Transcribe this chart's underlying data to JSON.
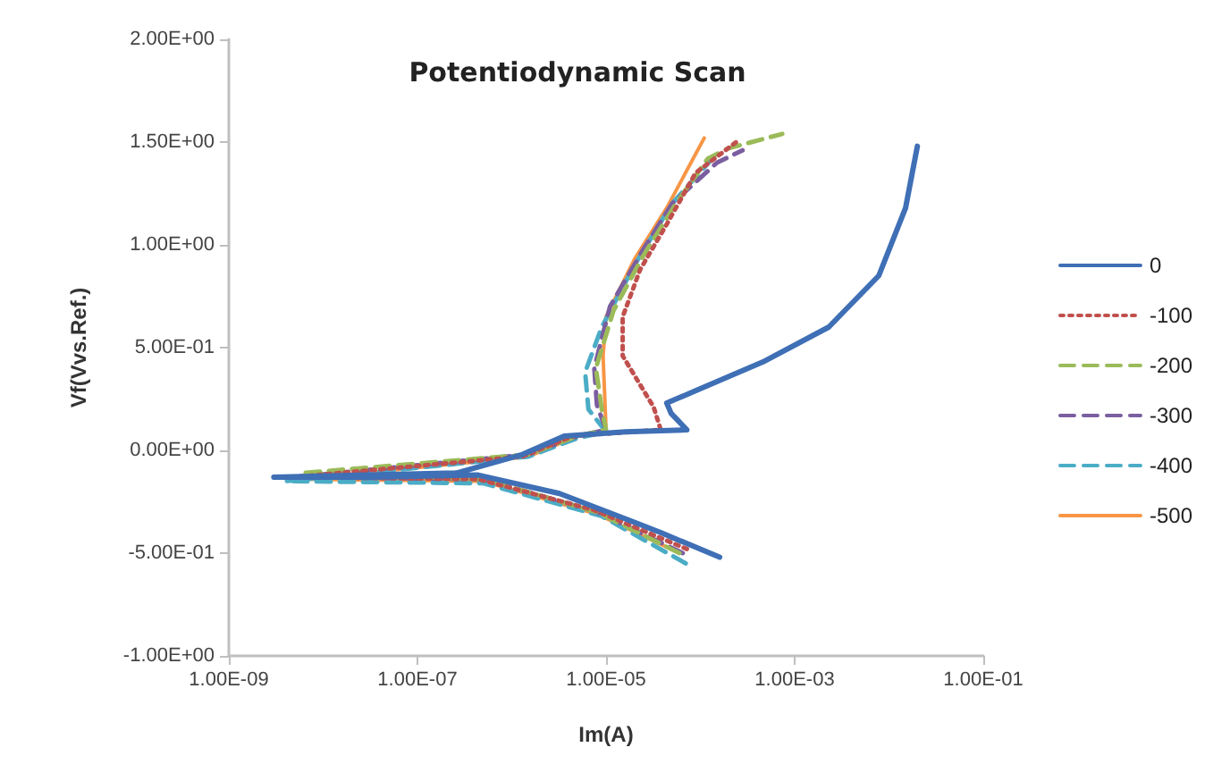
{
  "chart_data": {
    "type": "line",
    "title": "Potentiodynamic Scan",
    "xlabel": "Im(A)",
    "ylabel": "Vf(Vvs.Ref.)",
    "log": "x",
    "grid": false,
    "legend": "right",
    "marker": "none",
    "xlim": [
      1e-09,
      0.1
    ],
    "xticks": [
      {
        "value": 1e-09,
        "label": "1.00E-09"
      },
      {
        "value": 1e-07,
        "label": "1.00E-07"
      },
      {
        "value": 1e-05,
        "label": "1.00E-05"
      },
      {
        "value": 0.001,
        "label": "1.00E-03"
      },
      {
        "value": 0.1,
        "label": "1.00E-01"
      }
    ],
    "ylim": [
      -1,
      2
    ],
    "yticks": [
      {
        "value": -1,
        "label": "-1.00E+00"
      },
      {
        "value": -0.5,
        "label": "-5.00E-01"
      },
      {
        "value": 0,
        "label": "0.00E+00"
      },
      {
        "value": 0.5,
        "label": "5.00E-01"
      },
      {
        "value": 1,
        "label": "1.00E+00"
      },
      {
        "value": 1.5,
        "label": "1.50E+00"
      },
      {
        "value": 2,
        "label": "2.00E+00"
      }
    ],
    "series": [
      {
        "name": "0",
        "color": "#3f6fb5",
        "line_style": "solid",
        "x": [
          0.00016,
          3.8e-05,
          2e-05,
          3.2e-06,
          4.4e-07,
          3.2e-08,
          3e-09,
          2.6e-07,
          1.3e-06,
          3.6e-06,
          1.6e-05,
          7.2e-05,
          4.9e-05,
          4.4e-05,
          8.9e-05,
          0.00046,
          0.0023,
          0.0078,
          0.015,
          0.02
        ],
        "values": [
          -0.52,
          -0.4,
          -0.35,
          -0.21,
          -0.12,
          -0.13,
          -0.13,
          -0.11,
          -0.02,
          0.07,
          0.09,
          0.1,
          0.18,
          0.23,
          0.29,
          0.43,
          0.6,
          0.85,
          1.18,
          1.48
        ]
      },
      {
        "name": "-100",
        "color": "#c0504d",
        "line_style": "dotted",
        "x": [
          7.2e-05,
          7.4e-06,
          4.4e-07,
          4.9e-09,
          1.3e-06,
          4.5e-06,
          3.8e-05,
          3.2e-05,
          1.5e-05,
          1.5e-05,
          2.3e-05,
          4.4e-05,
          8.9e-05,
          0.00024
        ],
        "values": [
          -0.48,
          -0.29,
          -0.14,
          -0.13,
          -0.03,
          0.07,
          0.1,
          0.21,
          0.46,
          0.65,
          0.88,
          1.1,
          1.35,
          1.5
        ]
      },
      {
        "name": "-200",
        "color": "#9bbb59",
        "line_style": "dashed",
        "x": [
          6e-05,
          8e-06,
          5e-07,
          6e-09,
          1.5e-06,
          5e-06,
          1e-05,
          9e-06,
          7.8e-06,
          1.2e-05,
          2.5e-05,
          5.5e-05,
          0.00012,
          0.0002,
          0.00074
        ],
        "values": [
          -0.5,
          -0.3,
          -0.14,
          -0.11,
          -0.02,
          0.07,
          0.1,
          0.2,
          0.4,
          0.68,
          0.95,
          1.2,
          1.42,
          1.47,
          1.54
        ]
      },
      {
        "name": "-300",
        "color": "#7a5ea0",
        "line_style": "dashed",
        "x": [
          6.5e-05,
          8e-06,
          5e-07,
          5e-09,
          1.5e-06,
          5e-06,
          1e-05,
          8e-06,
          7.5e-06,
          1.1e-05,
          2.5e-05,
          5e-05,
          0.00015,
          0.00028
        ],
        "values": [
          -0.5,
          -0.3,
          -0.14,
          -0.13,
          -0.02,
          0.07,
          0.1,
          0.22,
          0.4,
          0.7,
          0.98,
          1.2,
          1.4,
          1.46
        ]
      },
      {
        "name": "-400",
        "color": "#4bacc6",
        "line_style": "dashed",
        "x": [
          7e-05,
          9e-06,
          5e-07,
          4e-09,
          1.5e-06,
          5e-06,
          1e-05,
          6.5e-06,
          6e-06,
          9e-06,
          2e-05,
          5e-05,
          0.00014
        ],
        "values": [
          -0.55,
          -0.32,
          -0.16,
          -0.15,
          -0.03,
          0.06,
          0.09,
          0.2,
          0.38,
          0.6,
          0.9,
          1.2,
          1.43
        ]
      },
      {
        "name": "-500",
        "color": "#f79646",
        "line_style": "solid",
        "x": [
          6e-05,
          8e-06,
          5e-07,
          6e-09,
          1.5e-06,
          5e-06,
          1e-05,
          9.3e-06,
          1e-05,
          2e-05,
          4.4e-05,
          0.00011
        ],
        "values": [
          -0.5,
          -0.31,
          -0.15,
          -0.14,
          -0.03,
          0.07,
          0.1,
          0.46,
          0.65,
          0.93,
          1.18,
          1.52
        ]
      }
    ]
  }
}
